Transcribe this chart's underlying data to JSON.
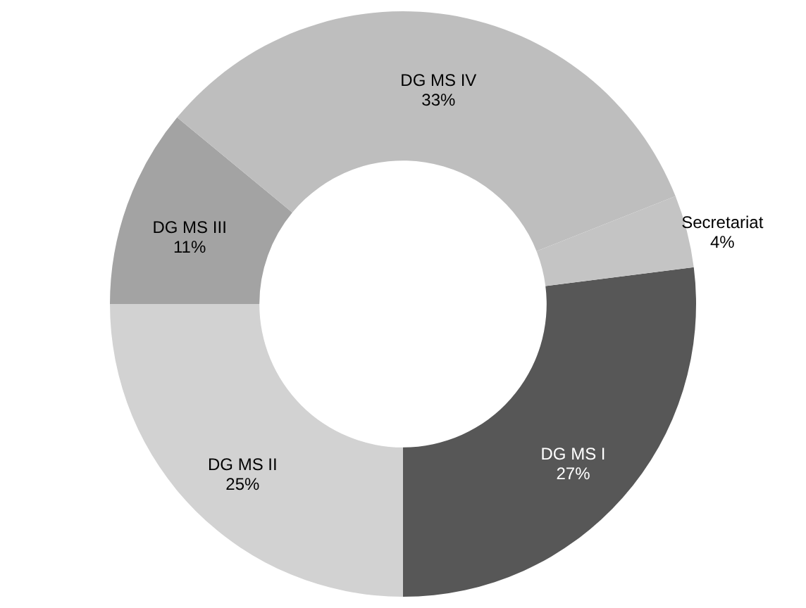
{
  "chart_data": {
    "type": "donut",
    "categories": [
      "DG MS I",
      "DG MS II",
      "DG MS III",
      "DG MS IV",
      "Secretariat"
    ],
    "values": [
      27,
      25,
      11,
      33,
      4
    ],
    "value_labels": [
      "27%",
      "25%",
      "11%",
      "33%",
      "4%"
    ],
    "colors": [
      "#575757",
      "#d2d2d2",
      "#a3a3a3",
      "#bebebe",
      "#c4c4c4"
    ]
  }
}
